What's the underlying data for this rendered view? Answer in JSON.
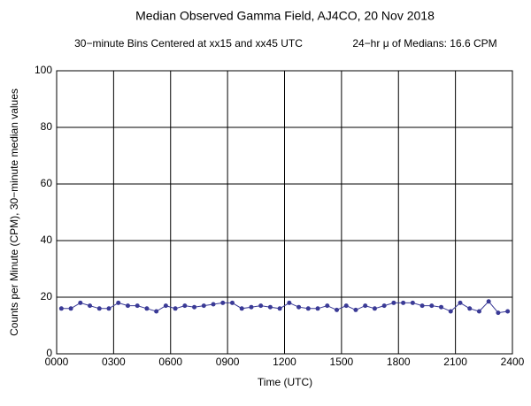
{
  "chart_data": {
    "type": "line",
    "title": "Median Observed Gamma Field, AJ4CO, 20 Nov 2018",
    "subtitle": "30−minute Bins Centered at xx15 and xx45 UTC",
    "annotation": "24−hr μ of Medians: 16.6 CPM",
    "x_label": "Time (UTC)",
    "y_label": "Counts per Minute (CPM), 30−minute median values",
    "x": [
      0.25,
      0.75,
      1.25,
      1.75,
      2.25,
      2.75,
      3.25,
      3.75,
      4.25,
      4.75,
      5.25,
      5.75,
      6.25,
      6.75,
      7.25,
      7.75,
      8.25,
      8.75,
      9.25,
      9.75,
      10.25,
      10.75,
      11.25,
      11.75,
      12.25,
      12.75,
      13.25,
      13.75,
      14.25,
      14.75,
      15.25,
      15.75,
      16.25,
      16.75,
      17.25,
      17.75,
      18.25,
      18.75,
      19.25,
      19.75,
      20.25,
      20.75,
      21.25,
      21.75,
      22.25,
      22.75,
      23.25,
      23.75
    ],
    "series": [
      {
        "name": "Median CPM",
        "color": "#3a3a96",
        "values": [
          16,
          16,
          18,
          17,
          16,
          16,
          18,
          17,
          17,
          16,
          15,
          17,
          16,
          17,
          16.5,
          17,
          17.5,
          18,
          18,
          16,
          16.5,
          17,
          16.5,
          16,
          18,
          16.5,
          16,
          16,
          17,
          15.5,
          17,
          15.5,
          17,
          16,
          17,
          18,
          18,
          18,
          17,
          17,
          16.5,
          15,
          18,
          16,
          15,
          18.5,
          14.5,
          15
        ]
      }
    ],
    "xlim": [
      0,
      24
    ],
    "xticks": [
      {
        "value": 0,
        "label": "0000"
      },
      {
        "value": 3,
        "label": "0300"
      },
      {
        "value": 6,
        "label": "0600"
      },
      {
        "value": 9,
        "label": "0900"
      },
      {
        "value": 12,
        "label": "1200"
      },
      {
        "value": 15,
        "label": "1500"
      },
      {
        "value": 18,
        "label": "1800"
      },
      {
        "value": 21,
        "label": "2100"
      },
      {
        "value": 24,
        "label": "2400"
      }
    ],
    "ylim": [
      0,
      100
    ],
    "yticks": [
      0,
      20,
      40,
      60,
      80,
      100
    ],
    "grid": true
  }
}
